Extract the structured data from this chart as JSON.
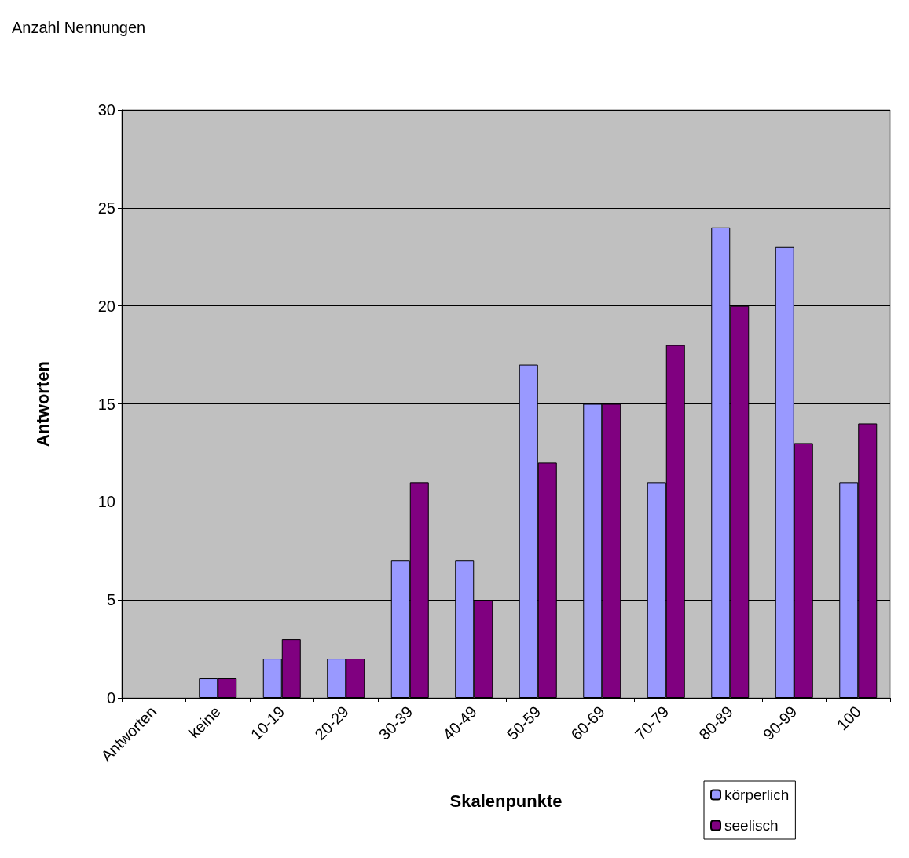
{
  "chart_data": {
    "type": "bar",
    "title": "Anzahl Nennungen",
    "xlabel": "Skalenpunkte",
    "ylabel": "Antworten",
    "categories": [
      "Antworten",
      "keine",
      "10-19",
      "20-29",
      "30-39",
      "40-49",
      "50-59",
      "60-69",
      "70-79",
      "80-89",
      "90-99",
      "100"
    ],
    "series": [
      {
        "name": "körperlich",
        "color": "#9999ff",
        "values": [
          null,
          1,
          2,
          2,
          7,
          7,
          17,
          15,
          11,
          24,
          23,
          11
        ]
      },
      {
        "name": "seelisch",
        "color": "#800080",
        "values": [
          null,
          1,
          3,
          2,
          11,
          5,
          12,
          15,
          18,
          20,
          13,
          14
        ]
      }
    ],
    "ylim": [
      0,
      30
    ],
    "yticks": [
      0,
      5,
      10,
      15,
      20,
      25,
      30
    ],
    "grid": "y",
    "legend": "bottom right"
  }
}
